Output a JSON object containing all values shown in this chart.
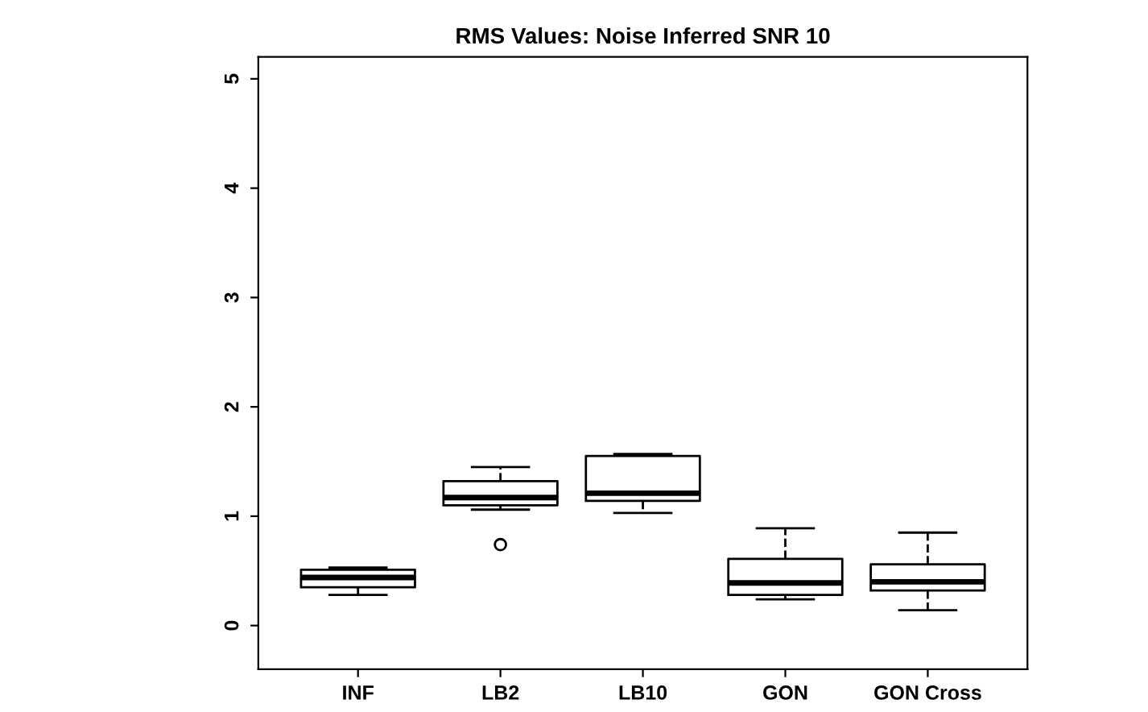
{
  "chart_data": {
    "type": "box",
    "title": "RMS Values: Noise Inferred SNR 10",
    "categories": [
      "INF",
      "LB2",
      "LB10",
      "GON",
      "GON Cross"
    ],
    "boxes": [
      {
        "low": 0.28,
        "q1": 0.35,
        "median": 0.44,
        "q3": 0.51,
        "high": 0.53
      },
      {
        "low": 1.06,
        "q1": 1.1,
        "median": 1.17,
        "q3": 1.32,
        "high": 1.45,
        "outliers": [
          0.74
        ]
      },
      {
        "low": 1.03,
        "q1": 1.14,
        "median": 1.21,
        "q3": 1.55,
        "high": 1.57
      },
      {
        "low": 0.24,
        "q1": 0.28,
        "median": 0.39,
        "q3": 0.61,
        "high": 0.89
      },
      {
        "low": 0.14,
        "q1": 0.32,
        "median": 0.4,
        "q3": 0.56,
        "high": 0.85
      }
    ],
    "ylim": [
      -0.4,
      5.2
    ],
    "yticks": [
      0,
      1,
      2,
      3,
      4,
      5
    ],
    "grid": false
  }
}
